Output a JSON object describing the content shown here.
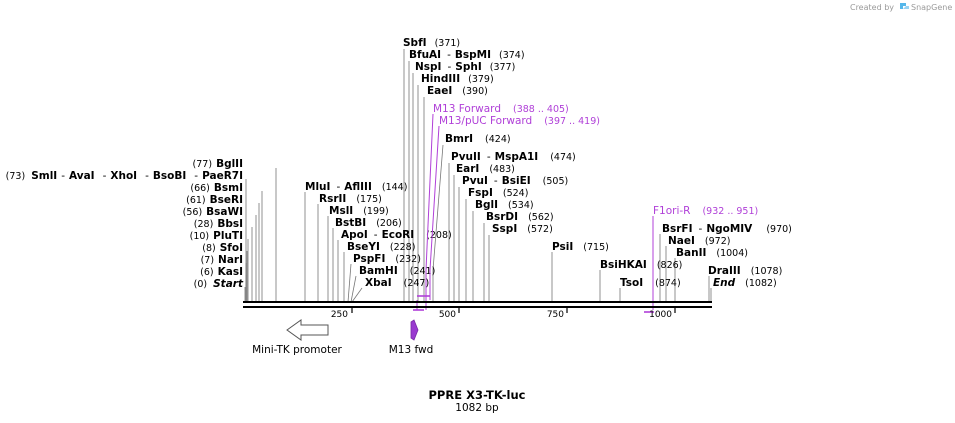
{
  "brand": {
    "created_by": "Created by",
    "name": "SnapGene"
  },
  "map": {
    "title": "PPRE X3-TK-luc",
    "length_label": "1082 bp",
    "length": 1082,
    "ticks": [
      "250",
      "500",
      "750",
      "1000"
    ],
    "colors": {
      "primer": "#b040d8",
      "line": "#777777",
      "backbone": "#000000"
    }
  },
  "left_sites": [
    {
      "pos": "(73)",
      "names": [
        "SmlI",
        "AvaI",
        "XhoI",
        "BsoBI",
        "PaeR7I"
      ],
      "bp": 73
    },
    {
      "pos": "(77)",
      "names": [
        "BglII"
      ],
      "bp": 77
    },
    {
      "pos": "(66)",
      "names": [
        "BsmI"
      ],
      "bp": 66
    },
    {
      "pos": "(61)",
      "names": [
        "BseRI"
      ],
      "bp": 61
    },
    {
      "pos": "(56)",
      "names": [
        "BsaWI"
      ],
      "bp": 56
    },
    {
      "pos": "(28)",
      "names": [
        "BbsI"
      ],
      "bp": 28
    },
    {
      "pos": "(10)",
      "names": [
        "PluTI"
      ],
      "bp": 10
    },
    {
      "pos": "(8)",
      "names": [
        "SfoI"
      ],
      "bp": 8
    },
    {
      "pos": "(7)",
      "names": [
        "NarI"
      ],
      "bp": 7
    },
    {
      "pos": "(6)",
      "names": [
        "KasI"
      ],
      "bp": 6
    },
    {
      "pos": "(0)",
      "names": [
        "Start"
      ],
      "bp": 0,
      "italic": true
    }
  ],
  "right_sites": [
    {
      "names": [
        "SbfI"
      ],
      "pos": "(371)",
      "bp": 371
    },
    {
      "names": [
        "BfuAI",
        "BspMI"
      ],
      "pos": "(374)",
      "bp": 374
    },
    {
      "names": [
        "NspI",
        "SphI"
      ],
      "pos": "(377)",
      "bp": 377
    },
    {
      "names": [
        "HindIII"
      ],
      "pos": "(379)",
      "bp": 379
    },
    {
      "names": [
        "EaeI"
      ],
      "pos": "(390)",
      "bp": 390
    },
    {
      "names": [
        "BmrI"
      ],
      "pos": "(424)",
      "bp": 424
    },
    {
      "names": [
        "PvuII",
        "MspA1I"
      ],
      "pos": "(474)",
      "bp": 474
    },
    {
      "names": [
        "EarI"
      ],
      "pos": "(483)",
      "bp": 483
    },
    {
      "names": [
        "PvuI",
        "BsiEI"
      ],
      "pos": "(505)",
      "bp": 505
    },
    {
      "names": [
        "FspI"
      ],
      "pos": "(524)",
      "bp": 524
    },
    {
      "names": [
        "BglI"
      ],
      "pos": "(534)",
      "bp": 534
    },
    {
      "names": [
        "BsrDI"
      ],
      "pos": "(562)",
      "bp": 562
    },
    {
      "names": [
        "SspI"
      ],
      "pos": "(572)",
      "bp": 572
    },
    {
      "names": [
        "MluI",
        "AflIII"
      ],
      "pos": "(144)",
      "bp": 144
    },
    {
      "names": [
        "RsrII"
      ],
      "pos": "(175)",
      "bp": 175
    },
    {
      "names": [
        "MslI"
      ],
      "pos": "(199)",
      "bp": 199
    },
    {
      "names": [
        "BstBI"
      ],
      "pos": "(206)",
      "bp": 206
    },
    {
      "names": [
        "ApoI",
        "EcoRI"
      ],
      "pos": "(208)",
      "bp": 208
    },
    {
      "names": [
        "BseYI"
      ],
      "pos": "(228)",
      "bp": 228
    },
    {
      "names": [
        "PspFI"
      ],
      "pos": "(232)",
      "bp": 232
    },
    {
      "names": [
        "BamHI"
      ],
      "pos": "(241)",
      "bp": 241
    },
    {
      "names": [
        "XbaI"
      ],
      "pos": "(247)",
      "bp": 247
    },
    {
      "names": [
        "PsiI"
      ],
      "pos": "(715)",
      "bp": 715
    },
    {
      "names": [
        "BsiHKAI"
      ],
      "pos": "(826)",
      "bp": 826
    },
    {
      "names": [
        "TsoI"
      ],
      "pos": "(874)",
      "bp": 874
    },
    {
      "names": [
        "BsrFI",
        "NgoMIV"
      ],
      "pos": "(970)",
      "bp": 970
    },
    {
      "names": [
        "NaeI"
      ],
      "pos": "(972)",
      "bp": 972
    },
    {
      "names": [
        "BanII"
      ],
      "pos": "(1004)",
      "bp": 1004
    },
    {
      "names": [
        "DraIII"
      ],
      "pos": "(1078)",
      "bp": 1078
    },
    {
      "names": [
        "End"
      ],
      "pos": "(1082)",
      "bp": 1082,
      "italic": true
    }
  ],
  "primers": [
    {
      "name": "M13 Forward",
      "range": "(388 .. 405)",
      "start": 388,
      "end": 405
    },
    {
      "name": "M13/pUC Forward",
      "range": "(397 .. 419)",
      "start": 397,
      "end": 419
    },
    {
      "name": "F1ori-R",
      "range": "(932 .. 951)",
      "start": 932,
      "end": 951
    }
  ],
  "features": [
    {
      "name": "Mini-TK promoter",
      "kind": "promoter",
      "direction": "reverse"
    },
    {
      "name": "M13 fwd",
      "kind": "primer_bind",
      "direction": "forward"
    }
  ]
}
